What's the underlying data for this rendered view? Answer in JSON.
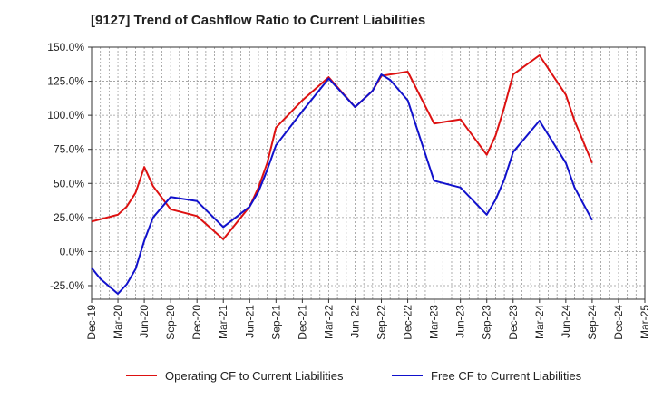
{
  "chart_data": {
    "type": "line",
    "title": "[9127]  Trend of Cashflow Ratio to Current Liabilities",
    "xlabel": "",
    "ylabel": "",
    "ylim": [
      -35,
      150
    ],
    "y_ticks": [
      "150.0%",
      "125.0%",
      "100.0%",
      "75.0%",
      "50.0%",
      "25.0%",
      "0.0%",
      "-25.0%"
    ],
    "y_tick_values": [
      150,
      125,
      100,
      75,
      50,
      25,
      0,
      -25
    ],
    "x_ticks": [
      "Dec-19",
      "Mar-20",
      "Jun-20",
      "Sep-20",
      "Dec-20",
      "Mar-21",
      "Jun-21",
      "Sep-21",
      "Dec-21",
      "Mar-22",
      "Jun-22",
      "Sep-22",
      "Dec-22",
      "Mar-23",
      "Jun-23",
      "Sep-23",
      "Dec-23",
      "Mar-24",
      "Jun-24",
      "Sep-24",
      "Dec-24",
      "Mar-25"
    ],
    "grid": true,
    "legend_position": "bottom",
    "series": [
      {
        "name": "Operating CF to Current Liabilities",
        "color": "#dd1111",
        "x": [
          "Dec-19",
          "Mar-20",
          "Apr-20",
          "May-20",
          "Jun-20",
          "Jul-20",
          "Sep-20",
          "Dec-20",
          "Mar-21",
          "Jun-21",
          "Jul-21",
          "Aug-21",
          "Sep-21",
          "Dec-21",
          "Mar-22",
          "Jun-22",
          "Aug-22",
          "Sep-22",
          "Dec-22",
          "Mar-23",
          "Jun-23",
          "Sep-23",
          "Oct-23",
          "Nov-23",
          "Dec-23",
          "Mar-24",
          "Jun-24",
          "Jul-24",
          "Sep-24"
        ],
        "values": [
          22,
          27,
          33,
          43,
          62,
          48,
          31,
          26,
          9,
          33,
          47,
          65,
          91,
          111,
          128,
          106,
          118,
          129,
          132,
          94,
          97,
          71,
          85,
          106,
          130,
          144,
          115,
          96,
          65
        ]
      },
      {
        "name": "Free CF to Current Liabilities",
        "color": "#1111cc",
        "x": [
          "Dec-19",
          "Jan-20",
          "Mar-20",
          "Apr-20",
          "May-20",
          "Jun-20",
          "Jul-20",
          "Sep-20",
          "Dec-20",
          "Mar-21",
          "Jun-21",
          "Jul-21",
          "Aug-21",
          "Sep-21",
          "Dec-21",
          "Mar-22",
          "Jun-22",
          "Aug-22",
          "Sep-22",
          "Oct-22",
          "Dec-22",
          "Mar-23",
          "Jun-23",
          "Sep-23",
          "Oct-23",
          "Nov-23",
          "Dec-23",
          "Mar-24",
          "Jun-24",
          "Jul-24",
          "Sep-24"
        ],
        "values": [
          -12,
          -20,
          -31,
          -24,
          -13,
          8,
          25,
          40,
          37,
          18,
          33,
          44,
          60,
          78,
          103,
          127,
          106,
          118,
          130,
          126,
          111,
          52,
          47,
          27,
          38,
          53,
          73,
          96,
          65,
          47,
          23
        ]
      }
    ]
  }
}
